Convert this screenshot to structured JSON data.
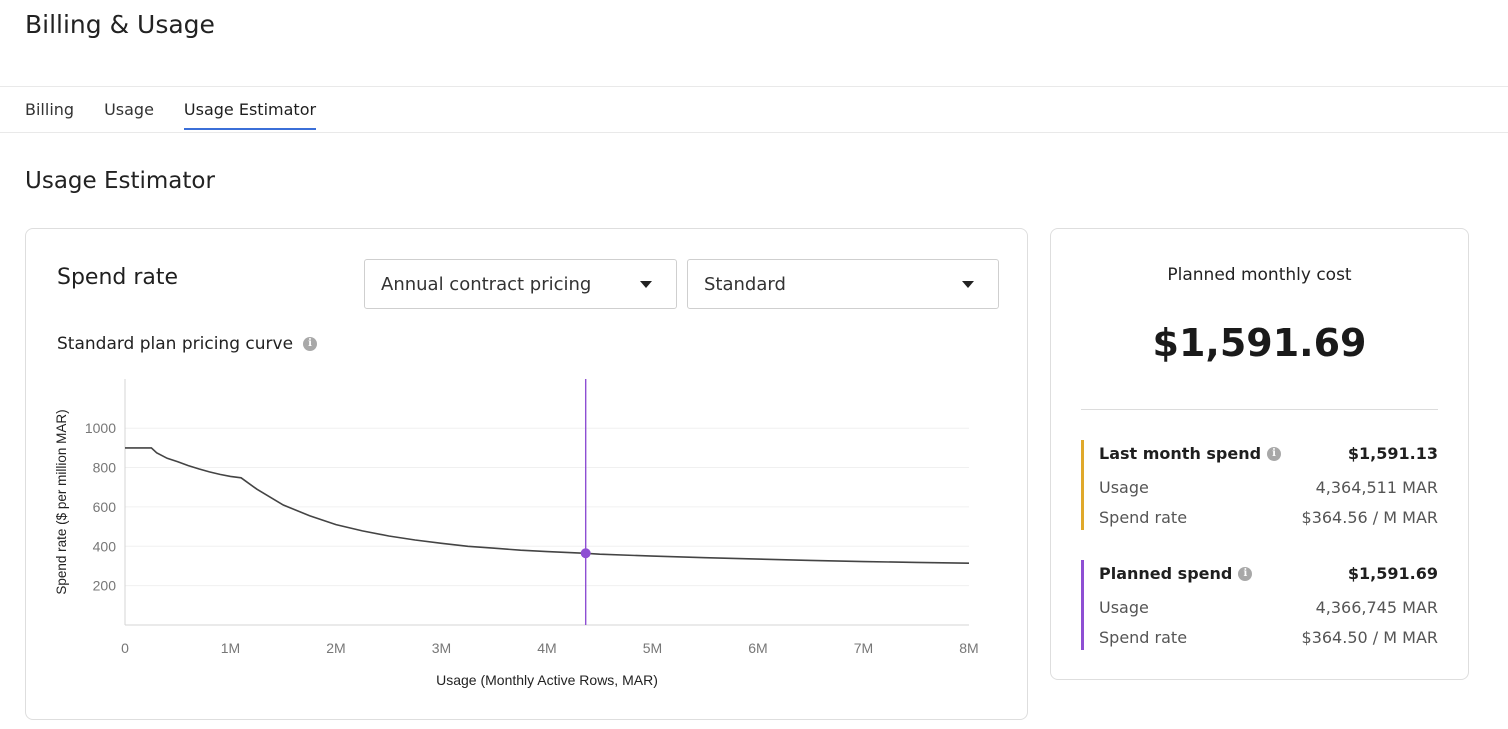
{
  "page": {
    "title": "Billing & Usage"
  },
  "tabs": [
    {
      "label": "Billing",
      "active": false
    },
    {
      "label": "Usage",
      "active": false
    },
    {
      "label": "Usage Estimator",
      "active": true
    }
  ],
  "section_title": "Usage Estimator",
  "spend_card": {
    "title": "Spend rate",
    "contract_select": {
      "value": "Annual contract pricing"
    },
    "plan_select": {
      "value": "Standard"
    },
    "curve_title": "Standard plan pricing curve",
    "info_icon": "info-icon"
  },
  "chart_data": {
    "type": "line",
    "title": "Standard plan pricing curve",
    "xlabel": "Usage (Monthly Active Rows, MAR)",
    "ylabel": "Spend rate ($ per million MAR)",
    "x_ticks": [
      "0",
      "1M",
      "2M",
      "3M",
      "4M",
      "5M",
      "6M",
      "7M",
      "8M"
    ],
    "y_ticks": [
      "200",
      "400",
      "600",
      "800",
      "1000"
    ],
    "xlim": [
      0,
      8000000
    ],
    "ylim": [
      0,
      1250
    ],
    "grid": "horizontal",
    "series": [
      {
        "x": [
          0,
          250000,
          300000,
          400000,
          500000,
          600000,
          700000,
          800000,
          900000,
          1000000,
          1100000,
          1250000,
          1500000,
          1750000,
          2000000,
          2250000,
          2500000,
          2750000,
          3000000,
          3250000,
          3500000,
          3750000,
          4000000,
          4366745,
          4500000,
          5000000,
          5500000,
          6000000,
          6500000,
          7000000,
          7500000,
          8000000
        ],
        "y": [
          900,
          900,
          875,
          847,
          830,
          810,
          793,
          778,
          765,
          755,
          748,
          690,
          610,
          555,
          510,
          478,
          452,
          432,
          415,
          400,
          390,
          380,
          373,
          364.5,
          360,
          350,
          342,
          335,
          328,
          322,
          318,
          314
        ]
      }
    ],
    "marker": {
      "x": 4366745,
      "y": 364.5,
      "color": "#8e4fd3"
    },
    "line_color": "#444444"
  },
  "cost_card": {
    "label": "Planned monthly cost",
    "value": "$1,591.69",
    "last_month": {
      "title": "Last month spend",
      "total": "$1,591.13",
      "usage_label": "Usage",
      "usage_value": "4,364,511 MAR",
      "rate_label": "Spend rate",
      "rate_value": "$364.56 / M MAR",
      "color": "#e0a92a"
    },
    "planned": {
      "title": "Planned spend",
      "total": "$1,591.69",
      "usage_label": "Usage",
      "usage_value": "4,366,745 MAR",
      "rate_label": "Spend rate",
      "rate_value": "$364.50 / M MAR",
      "color": "#8e4fd3"
    }
  }
}
